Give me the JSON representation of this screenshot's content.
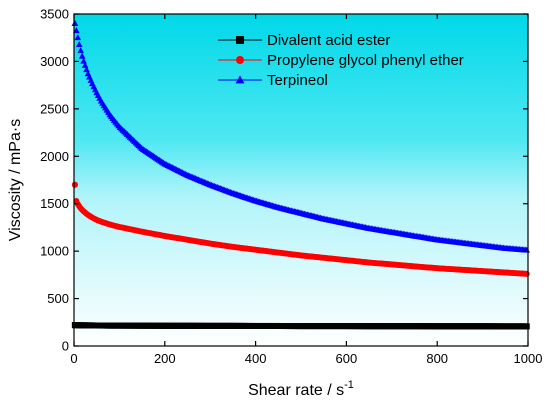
{
  "chart_data": {
    "type": "scatter",
    "title": "",
    "xlabel": "Shear rate / s",
    "xlabel_sup": "-1",
    "ylabel": "Viscosity / mPa·s",
    "xlim": [
      0,
      1000
    ],
    "ylim": [
      0,
      3500
    ],
    "xticks": [
      0,
      200,
      400,
      600,
      800,
      1000
    ],
    "yticks": [
      0,
      500,
      1000,
      1500,
      2000,
      2500,
      3000,
      3500
    ],
    "grid": false,
    "legend_placement": "top-right",
    "background": "vertical gradient from cyan (top) to white (bottom)",
    "x": [
      2,
      5,
      8,
      12,
      16,
      20,
      25,
      30,
      40,
      50,
      60,
      80,
      100,
      150,
      200,
      250,
      300,
      350,
      400,
      450,
      500,
      550,
      600,
      650,
      700,
      750,
      800,
      850,
      900,
      950,
      1000
    ],
    "series": [
      {
        "name": "Divalent acid ester",
        "marker": "square",
        "color": "#000000",
        "values": [
          220,
          220,
          219,
          219,
          218,
          218,
          218,
          217,
          217,
          216,
          216,
          215,
          215,
          214,
          213,
          213,
          212,
          212,
          211,
          211,
          210,
          210,
          210,
          209,
          209,
          209,
          208,
          208,
          208,
          207,
          207
        ]
      },
      {
        "name": "Propylene glycol phenyl ether",
        "marker": "circle",
        "color": "#ff0000",
        "values": [
          1700,
          1530,
          1500,
          1470,
          1445,
          1425,
          1405,
          1385,
          1355,
          1330,
          1310,
          1280,
          1255,
          1205,
          1160,
          1120,
          1080,
          1045,
          1015,
          985,
          955,
          930,
          905,
          880,
          860,
          840,
          820,
          805,
          790,
          775,
          760
        ]
      },
      {
        "name": "Terpineol",
        "marker": "triangle",
        "color": "#0000ff",
        "values": [
          3400,
          3330,
          3260,
          3170,
          3090,
          3020,
          2950,
          2880,
          2770,
          2670,
          2580,
          2430,
          2310,
          2080,
          1920,
          1800,
          1700,
          1610,
          1530,
          1460,
          1400,
          1340,
          1290,
          1240,
          1200,
          1160,
          1120,
          1090,
          1060,
          1030,
          1010
        ]
      }
    ]
  }
}
